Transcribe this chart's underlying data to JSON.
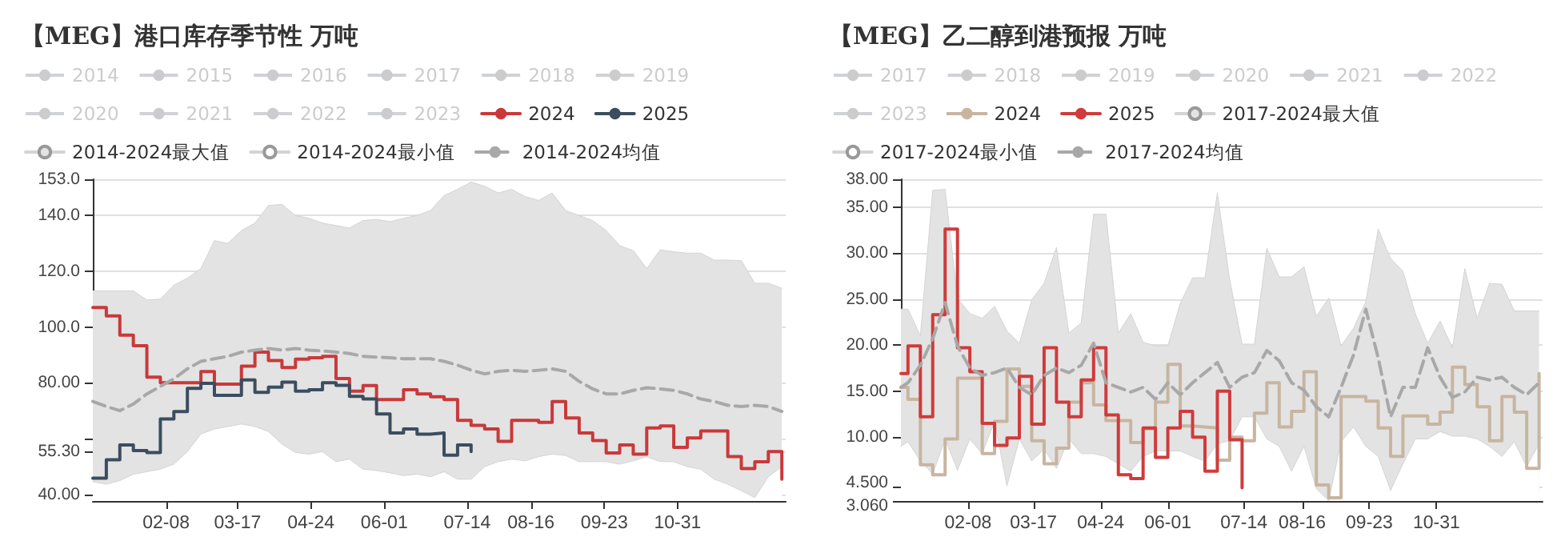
{
  "chart_data": [
    {
      "type": "step",
      "title": "【MEG】港口库存季节性 万吨",
      "legend": "top",
      "grid": "y",
      "marker": "none",
      "x": [
        "--01-01",
        "--01-08",
        "--01-15",
        "--01-22",
        "--01-29",
        "--02-05",
        "--02-12",
        "--02-19",
        "--02-26",
        "--03-05",
        "--03-12",
        "--03-19",
        "--03-26",
        "--04-02",
        "--04-09",
        "--04-16",
        "--04-23",
        "--04-30",
        "--05-07",
        "--05-14",
        "--05-21",
        "--05-28",
        "--06-04",
        "--06-11",
        "--06-18",
        "--06-25",
        "--07-02",
        "--07-09",
        "--07-16",
        "--07-23",
        "--07-30",
        "--08-06",
        "--08-13",
        "--08-20",
        "--08-27",
        "--09-03",
        "--09-10",
        "--09-17",
        "--09-24",
        "--10-01",
        "--10-08",
        "--10-15",
        "--10-22",
        "--10-29",
        "--11-05",
        "--11-12",
        "--11-19",
        "--11-26",
        "--12-03",
        "--12-10",
        "--12-17",
        "--12-24"
      ],
      "xlim": [
        "--01-01",
        "--12-26"
      ],
      "xticks": [
        {
          "value": "--02-08",
          "label": "02-08"
        },
        {
          "value": "--03-17",
          "label": "03-17"
        },
        {
          "value": "--04-24",
          "label": "04-24"
        },
        {
          "value": "--06-01",
          "label": "06-01"
        },
        {
          "value": "--07-14",
          "label": "07-14"
        },
        {
          "value": "--08-16",
          "label": "08-16"
        },
        {
          "value": "--09-23",
          "label": "09-23"
        },
        {
          "value": "--10-31",
          "label": "10-31"
        }
      ],
      "ylim": [
        37.6,
        153
      ],
      "yticks": [
        {
          "value": 40,
          "label": "40.00"
        },
        {
          "value": 55.3,
          "label": "55.30"
        },
        {
          "value": 60,
          "label": null
        },
        {
          "value": 80,
          "label": "80.00"
        },
        {
          "value": 100,
          "label": "100.0"
        },
        {
          "value": 120,
          "label": "120.0"
        },
        {
          "value": 140,
          "label": "140.0"
        },
        {
          "value": 153,
          "label": "153.0"
        }
      ],
      "series": [
        {
          "name": "2014",
          "values": [
            null,
            null,
            null,
            null,
            null,
            null,
            null,
            null,
            null,
            null,
            null,
            null,
            null,
            null,
            null,
            null,
            null,
            null,
            null,
            null,
            null,
            null,
            null,
            null,
            null,
            null,
            null,
            null,
            null,
            null,
            null,
            null,
            null,
            null,
            null,
            null,
            null,
            null,
            null,
            null,
            null,
            null,
            null,
            null,
            null,
            null,
            null,
            null,
            null,
            null,
            null,
            null
          ]
        },
        {
          "name": "2015",
          "values": [
            null,
            null,
            null,
            null,
            null,
            null,
            null,
            null,
            null,
            null,
            null,
            null,
            null,
            null,
            null,
            null,
            null,
            null,
            null,
            null,
            null,
            null,
            null,
            null,
            null,
            null,
            null,
            null,
            null,
            null,
            null,
            null,
            null,
            null,
            null,
            null,
            null,
            null,
            null,
            null,
            null,
            null,
            null,
            null,
            null,
            null,
            null,
            null,
            null,
            null,
            null,
            null
          ]
        },
        {
          "name": "2016",
          "values": [
            null,
            null,
            null,
            null,
            null,
            null,
            null,
            null,
            null,
            null,
            null,
            null,
            null,
            null,
            null,
            null,
            null,
            null,
            null,
            null,
            null,
            null,
            null,
            null,
            null,
            null,
            null,
            null,
            null,
            null,
            null,
            null,
            null,
            null,
            null,
            null,
            null,
            null,
            null,
            null,
            null,
            null,
            null,
            null,
            null,
            null,
            null,
            null,
            null,
            null,
            null,
            null
          ]
        },
        {
          "name": "2017",
          "values": [
            null,
            null,
            null,
            null,
            null,
            null,
            null,
            null,
            null,
            null,
            null,
            null,
            null,
            null,
            null,
            null,
            null,
            null,
            null,
            null,
            null,
            null,
            null,
            null,
            null,
            null,
            null,
            null,
            null,
            null,
            null,
            null,
            null,
            null,
            null,
            null,
            null,
            null,
            null,
            null,
            null,
            null,
            null,
            null,
            null,
            null,
            null,
            null,
            null,
            null,
            null,
            null
          ]
        },
        {
          "name": "2018",
          "values": [
            null,
            null,
            null,
            null,
            null,
            null,
            null,
            null,
            null,
            null,
            null,
            null,
            null,
            null,
            null,
            null,
            null,
            null,
            null,
            null,
            null,
            null,
            null,
            null,
            null,
            null,
            null,
            null,
            null,
            null,
            null,
            null,
            null,
            null,
            null,
            null,
            null,
            null,
            null,
            null,
            null,
            null,
            null,
            null,
            null,
            null,
            null,
            null,
            null,
            null,
            null,
            null
          ]
        },
        {
          "name": "2019",
          "values": [
            null,
            null,
            null,
            null,
            null,
            null,
            null,
            null,
            null,
            null,
            null,
            null,
            null,
            null,
            null,
            null,
            null,
            null,
            null,
            null,
            null,
            null,
            null,
            null,
            null,
            null,
            null,
            null,
            null,
            null,
            null,
            null,
            null,
            null,
            null,
            null,
            null,
            null,
            null,
            null,
            null,
            null,
            null,
            null,
            null,
            null,
            null,
            null,
            null,
            null,
            null,
            null
          ]
        },
        {
          "name": "2020",
          "values": [
            null,
            null,
            null,
            null,
            null,
            null,
            null,
            null,
            null,
            null,
            null,
            null,
            null,
            null,
            null,
            null,
            null,
            null,
            null,
            null,
            null,
            null,
            null,
            null,
            null,
            null,
            null,
            null,
            null,
            null,
            null,
            null,
            null,
            null,
            null,
            null,
            null,
            null,
            null,
            null,
            null,
            null,
            null,
            null,
            null,
            null,
            null,
            null,
            null,
            null,
            null,
            null
          ]
        },
        {
          "name": "2021",
          "values": [
            null,
            null,
            null,
            null,
            null,
            null,
            null,
            null,
            null,
            null,
            null,
            null,
            null,
            null,
            null,
            null,
            null,
            null,
            null,
            null,
            null,
            null,
            null,
            null,
            null,
            null,
            null,
            null,
            null,
            null,
            null,
            null,
            null,
            null,
            null,
            null,
            null,
            null,
            null,
            null,
            null,
            null,
            null,
            null,
            null,
            null,
            null,
            null,
            null,
            null,
            null,
            null
          ]
        },
        {
          "name": "2022",
          "values": [
            null,
            null,
            null,
            null,
            null,
            null,
            null,
            null,
            null,
            null,
            null,
            null,
            null,
            null,
            null,
            null,
            null,
            null,
            null,
            null,
            null,
            null,
            null,
            null,
            null,
            null,
            null,
            null,
            null,
            null,
            null,
            null,
            null,
            null,
            null,
            null,
            null,
            null,
            null,
            null,
            null,
            null,
            null,
            null,
            null,
            null,
            null,
            null,
            null,
            null,
            null,
            null
          ]
        },
        {
          "name": "2023",
          "values": [
            null,
            null,
            null,
            null,
            null,
            null,
            null,
            null,
            null,
            null,
            null,
            null,
            null,
            null,
            null,
            null,
            null,
            null,
            null,
            null,
            null,
            null,
            null,
            null,
            null,
            null,
            null,
            null,
            null,
            null,
            null,
            null,
            null,
            null,
            null,
            null,
            null,
            null,
            null,
            null,
            null,
            null,
            null,
            null,
            null,
            null,
            null,
            null,
            null,
            null,
            null,
            null
          ]
        },
        {
          "name": "2024",
          "color": "#c9393a",
          "values": [
            107,
            104,
            97.1,
            93.3,
            82,
            80,
            80,
            80,
            84,
            79.5,
            79.5,
            86,
            91,
            88,
            85.5,
            88.5,
            89,
            89.5,
            81.5,
            77,
            79,
            74,
            74,
            77.5,
            76,
            75,
            74,
            66.5,
            64.7,
            63.4,
            59,
            66.5,
            66.5,
            65.8,
            73.3,
            67.4,
            62,
            59.3,
            54.8,
            57.7,
            54.4,
            63.8,
            64.5,
            56.8,
            60.2,
            62.7,
            62.7,
            53.5,
            49.2,
            51.7,
            55.3,
            45.4
          ]
        },
        {
          "name": "2025",
          "color": "#3b4d5f",
          "values": [
            45.8,
            52.4,
            57.7,
            55.7,
            55,
            67,
            69.7,
            78,
            79.8,
            75.5,
            75.5,
            81,
            76.6,
            78.4,
            80.2,
            77,
            77.5,
            80,
            79.1,
            75.1,
            74.2,
            68.8,
            62,
            63.4,
            61.6,
            62,
            54,
            57.7,
            55.3,
            null,
            null,
            null,
            null,
            null,
            null,
            null,
            null,
            null,
            null,
            null,
            null,
            null,
            null,
            null,
            null,
            null,
            null,
            null,
            null,
            null,
            null,
            null
          ]
        },
        {
          "name": "2014-2024最大值",
          "type": "area",
          "color": "#e3e3e3",
          "values": [
            113,
            113,
            113,
            113,
            109.7,
            110,
            115,
            117.5,
            121,
            131,
            130,
            134.6,
            137.3,
            143.6,
            144,
            140,
            139,
            137.3,
            136.4,
            135.5,
            138.2,
            138.6,
            137.8,
            139,
            140,
            141.8,
            147.2,
            149.4,
            152,
            150.5,
            148.1,
            149.4,
            146.8,
            145.4,
            148.1,
            141.8,
            140,
            138.2,
            134.6,
            129.2,
            127.4,
            121,
            127.7,
            127,
            126.5,
            126.5,
            124,
            124,
            123.8,
            115.7,
            115.7,
            113.9
          ]
        },
        {
          "name": "2014-2024最小值",
          "type": "area",
          "color": "#ffffff",
          "values": [
            44.5,
            43.6,
            44.9,
            47.2,
            48.1,
            49,
            50.8,
            55.3,
            61.6,
            63.4,
            64.3,
            65.2,
            64.3,
            62.5,
            58,
            55,
            54.4,
            55.3,
            51.7,
            52.6,
            49,
            48.5,
            47.7,
            46.7,
            47.2,
            46.3,
            48.1,
            45.4,
            45.4,
            49.9,
            51.7,
            52.6,
            52,
            53.5,
            54.4,
            53.9,
            51.7,
            51.7,
            51.7,
            50.8,
            52,
            53.5,
            51.7,
            51.7,
            49.9,
            49,
            45.4,
            43.6,
            41.3,
            38.8,
            46.3,
            49.9
          ]
        },
        {
          "name": "2014-2024均值",
          "type": "line",
          "line_style": "dashed",
          "color": "#a8a8a8",
          "values": [
            73.3,
            71.5,
            70,
            72.4,
            76,
            78.7,
            81.4,
            85,
            87.7,
            88.6,
            89.5,
            91,
            91.7,
            92.3,
            91.7,
            92.3,
            91.7,
            91.4,
            91,
            90.5,
            89.5,
            89.2,
            89,
            88.6,
            88.6,
            88.6,
            87.7,
            86.3,
            84.5,
            83.2,
            84.1,
            84.5,
            84.1,
            84.5,
            85,
            84.1,
            80.5,
            77.8,
            76,
            76,
            77.3,
            78.2,
            77.8,
            77.3,
            76,
            74.2,
            73.3,
            71.9,
            71.5,
            71.9,
            71.5,
            69.7
          ]
        }
      ]
    },
    {
      "type": "step",
      "title": "【MEG】乙二醇到港预报 万吨",
      "legend": "top",
      "grid": "y",
      "marker": "none",
      "x": [
        "--01-01",
        "--01-05",
        "--01-12",
        "--01-19",
        "--01-26",
        "--02-02",
        "--02-09",
        "--02-16",
        "--02-23",
        "--03-02",
        "--03-09",
        "--03-16",
        "--03-23",
        "--03-30",
        "--04-06",
        "--04-13",
        "--04-20",
        "--04-27",
        "--05-04",
        "--05-11",
        "--05-18",
        "--05-25",
        "--06-01",
        "--06-08",
        "--06-15",
        "--06-22",
        "--06-29",
        "--07-06",
        "--07-13",
        "--07-20",
        "--07-27",
        "--08-03",
        "--08-10",
        "--08-17",
        "--08-24",
        "--08-31",
        "--09-07",
        "--09-14",
        "--09-21",
        "--09-28",
        "--10-05",
        "--10-12",
        "--10-19",
        "--10-26",
        "--11-02",
        "--11-09",
        "--11-16",
        "--11-23",
        "--11-30",
        "--12-07",
        "--12-14",
        "--12-21",
        "--12-28"
      ],
      "xlim": [
        "--01-01",
        "--12-30"
      ],
      "xticks": [
        {
          "value": "--02-08",
          "label": "02-08"
        },
        {
          "value": "--03-17",
          "label": "03-17"
        },
        {
          "value": "--04-24",
          "label": "04-24"
        },
        {
          "value": "--06-01",
          "label": "06-01"
        },
        {
          "value": "--07-14",
          "label": "07-14"
        },
        {
          "value": "--08-16",
          "label": "08-16"
        },
        {
          "value": "--09-23",
          "label": "09-23"
        },
        {
          "value": "--10-31",
          "label": "10-31"
        }
      ],
      "ylim": [
        3.06,
        38
      ],
      "yticks": [
        {
          "value": 3.06,
          "label": "3.060"
        },
        {
          "value": 4.5,
          "label": "4.500"
        },
        {
          "value": 10,
          "label": "10.00"
        },
        {
          "value": 15,
          "label": "15.00"
        },
        {
          "value": 20,
          "label": "20.00"
        },
        {
          "value": 25,
          "label": "25.00"
        },
        {
          "value": 30,
          "label": "30.00"
        },
        {
          "value": 35,
          "label": "35.00"
        },
        {
          "value": 38,
          "label": "38.00"
        }
      ],
      "series": [
        {
          "name": "2017",
          "values": [
            null,
            null,
            null,
            null,
            null,
            null,
            null,
            null,
            null,
            null,
            null,
            null,
            null,
            null,
            null,
            null,
            null,
            null,
            null,
            null,
            null,
            null,
            null,
            null,
            null,
            null,
            null,
            null,
            null,
            null,
            null,
            null,
            null,
            null,
            null,
            null,
            null,
            null,
            null,
            null,
            null,
            null,
            null,
            null,
            null,
            null,
            null,
            null,
            null,
            null,
            null,
            null,
            null
          ]
        },
        {
          "name": "2018",
          "values": [
            null,
            null,
            null,
            null,
            null,
            null,
            null,
            null,
            null,
            null,
            null,
            null,
            null,
            null,
            null,
            null,
            null,
            null,
            null,
            null,
            null,
            null,
            null,
            null,
            null,
            null,
            null,
            null,
            null,
            null,
            null,
            null,
            null,
            null,
            null,
            null,
            null,
            null,
            null,
            null,
            null,
            null,
            null,
            null,
            null,
            null,
            null,
            null,
            null,
            null,
            null,
            null,
            null
          ]
        },
        {
          "name": "2019",
          "values": [
            null,
            null,
            null,
            null,
            null,
            null,
            null,
            null,
            null,
            null,
            null,
            null,
            null,
            null,
            null,
            null,
            null,
            null,
            null,
            null,
            null,
            null,
            null,
            null,
            null,
            null,
            null,
            null,
            null,
            null,
            null,
            null,
            null,
            null,
            null,
            null,
            null,
            null,
            null,
            null,
            null,
            null,
            null,
            null,
            null,
            null,
            null,
            null,
            null,
            null,
            null,
            null,
            null
          ]
        },
        {
          "name": "2020",
          "values": [
            null,
            null,
            null,
            null,
            null,
            null,
            null,
            null,
            null,
            null,
            null,
            null,
            null,
            null,
            null,
            null,
            null,
            null,
            null,
            null,
            null,
            null,
            null,
            null,
            null,
            null,
            null,
            null,
            null,
            null,
            null,
            null,
            null,
            null,
            null,
            null,
            null,
            null,
            null,
            null,
            null,
            null,
            null,
            null,
            null,
            null,
            null,
            null,
            null,
            null,
            null,
            null,
            null
          ]
        },
        {
          "name": "2021",
          "values": [
            null,
            null,
            null,
            null,
            null,
            null,
            null,
            null,
            null,
            null,
            null,
            null,
            null,
            null,
            null,
            null,
            null,
            null,
            null,
            null,
            null,
            null,
            null,
            null,
            null,
            null,
            null,
            null,
            null,
            null,
            null,
            null,
            null,
            null,
            null,
            null,
            null,
            null,
            null,
            null,
            null,
            null,
            null,
            null,
            null,
            null,
            null,
            null,
            null,
            null,
            null,
            null,
            null
          ]
        },
        {
          "name": "2022",
          "values": [
            null,
            null,
            null,
            null,
            null,
            null,
            null,
            null,
            null,
            null,
            null,
            null,
            null,
            null,
            null,
            null,
            null,
            null,
            null,
            null,
            null,
            null,
            null,
            null,
            null,
            null,
            null,
            null,
            null,
            null,
            null,
            null,
            null,
            null,
            null,
            null,
            null,
            null,
            null,
            null,
            null,
            null,
            null,
            null,
            null,
            null,
            null,
            null,
            null,
            null,
            null,
            null,
            null
          ]
        },
        {
          "name": "2023",
          "values": [
            null,
            null,
            null,
            null,
            null,
            null,
            null,
            null,
            null,
            null,
            null,
            null,
            null,
            null,
            null,
            null,
            null,
            null,
            null,
            null,
            null,
            null,
            null,
            null,
            null,
            null,
            null,
            null,
            null,
            null,
            null,
            null,
            null,
            null,
            null,
            null,
            null,
            null,
            null,
            null,
            null,
            null,
            null,
            null,
            null,
            null,
            null,
            null,
            null,
            null,
            null,
            null,
            null
          ]
        },
        {
          "name": "2024",
          "color": "#c8b5a0",
          "values": [
            15.4,
            14.1,
            7,
            5.9,
            9.8,
            16.4,
            16.4,
            8.2,
            11.7,
            17.4,
            15.5,
            9.6,
            7.1,
            8.8,
            13.8,
            15.9,
            13.5,
            11.8,
            11.8,
            9.4,
            10.9,
            13.8,
            17.9,
            11.2,
            11.1,
            11,
            7.5,
            10,
            9.6,
            12.6,
            15.9,
            11.1,
            12.8,
            17.1,
            4.8,
            3.4,
            14.4,
            14.4,
            13.9,
            11,
            7.9,
            12.3,
            12.3,
            11.4,
            12.7,
            17.6,
            15.7,
            13.3,
            9.6,
            14.4,
            12.7,
            6.6,
            16.9
          ]
        },
        {
          "name": "2025",
          "color": "#d03b3b",
          "values": [
            16.9,
            19.9,
            12.2,
            23.3,
            32.6,
            19.7,
            17.1,
            11.5,
            9.1,
            9.9,
            16.6,
            11.4,
            19.7,
            13.8,
            12.2,
            16.2,
            19.7,
            12.4,
            5.9,
            5.5,
            11,
            7.8,
            11,
            12.8,
            10,
            6.3,
            15,
            9.7,
            4.5,
            null,
            null,
            null,
            null,
            null,
            null,
            null,
            null,
            null,
            null,
            null,
            null,
            null,
            null,
            null,
            null,
            null,
            null,
            null,
            null,
            null,
            null,
            null,
            null
          ]
        },
        {
          "name": "2017-2024最大值",
          "type": "area",
          "color": "#e3e3e3",
          "values": [
            23.9,
            23.9,
            21,
            36.8,
            36.9,
            25.1,
            23.4,
            22.9,
            24.2,
            21.5,
            20.2,
            24.9,
            26.7,
            30.6,
            21.3,
            22.4,
            34.2,
            34.2,
            21.3,
            23.4,
            20.3,
            19.9,
            19.9,
            24.5,
            27.3,
            27.3,
            36.5,
            27.1,
            20.1,
            20.1,
            30.5,
            27.4,
            27.4,
            28.5,
            23.1,
            25.1,
            19.9,
            21.8,
            24.7,
            32.6,
            29.4,
            28,
            23.4,
            20.2,
            22.6,
            19.7,
            28.3,
            22.9,
            26.7,
            26.6,
            23.7,
            23.7,
            23.7
          ]
        },
        {
          "name": "2017-2024最小值",
          "type": "area",
          "color": "#ffffff",
          "values": [
            9,
            9.5,
            7.4,
            6,
            9.8,
            6.4,
            9.8,
            8.2,
            11.7,
            4.7,
            9.8,
            7.4,
            8.7,
            6.6,
            9.8,
            8.2,
            8.2,
            7.9,
            7.1,
            6.3,
            7.9,
            8.5,
            8.5,
            8.5,
            7.9,
            7.4,
            9.3,
            9.6,
            12.2,
            12.2,
            9.8,
            9,
            6.3,
            9,
            4.4,
            3.06,
            9.5,
            11.1,
            9,
            7.9,
            4.2,
            7.1,
            9.8,
            9.8,
            10.6,
            10.1,
            10.1,
            9.8,
            9,
            7.9,
            9.5,
            6.8,
            9.3
          ]
        },
        {
          "name": "2017-2024均值",
          "type": "line",
          "line_style": "dashed",
          "color": "#a8a8a8",
          "values": [
            15.4,
            15.9,
            17.8,
            20.7,
            24.6,
            19.9,
            17.5,
            16.7,
            17,
            17.5,
            15.4,
            14.6,
            16.7,
            17.5,
            17,
            17.8,
            20.2,
            15.9,
            15.4,
            14.9,
            15.4,
            14.1,
            15.9,
            14.6,
            15.9,
            17,
            18.1,
            15.4,
            16.5,
            17,
            19.4,
            18.3,
            15.9,
            15.1,
            13.3,
            12.2,
            15.4,
            18.9,
            23.9,
            18.6,
            12.2,
            15.4,
            15.4,
            19.7,
            16.5,
            14.3,
            14.9,
            16.5,
            16.2,
            16.5,
            15.4,
            14.6,
            15.9
          ]
        }
      ]
    }
  ]
}
